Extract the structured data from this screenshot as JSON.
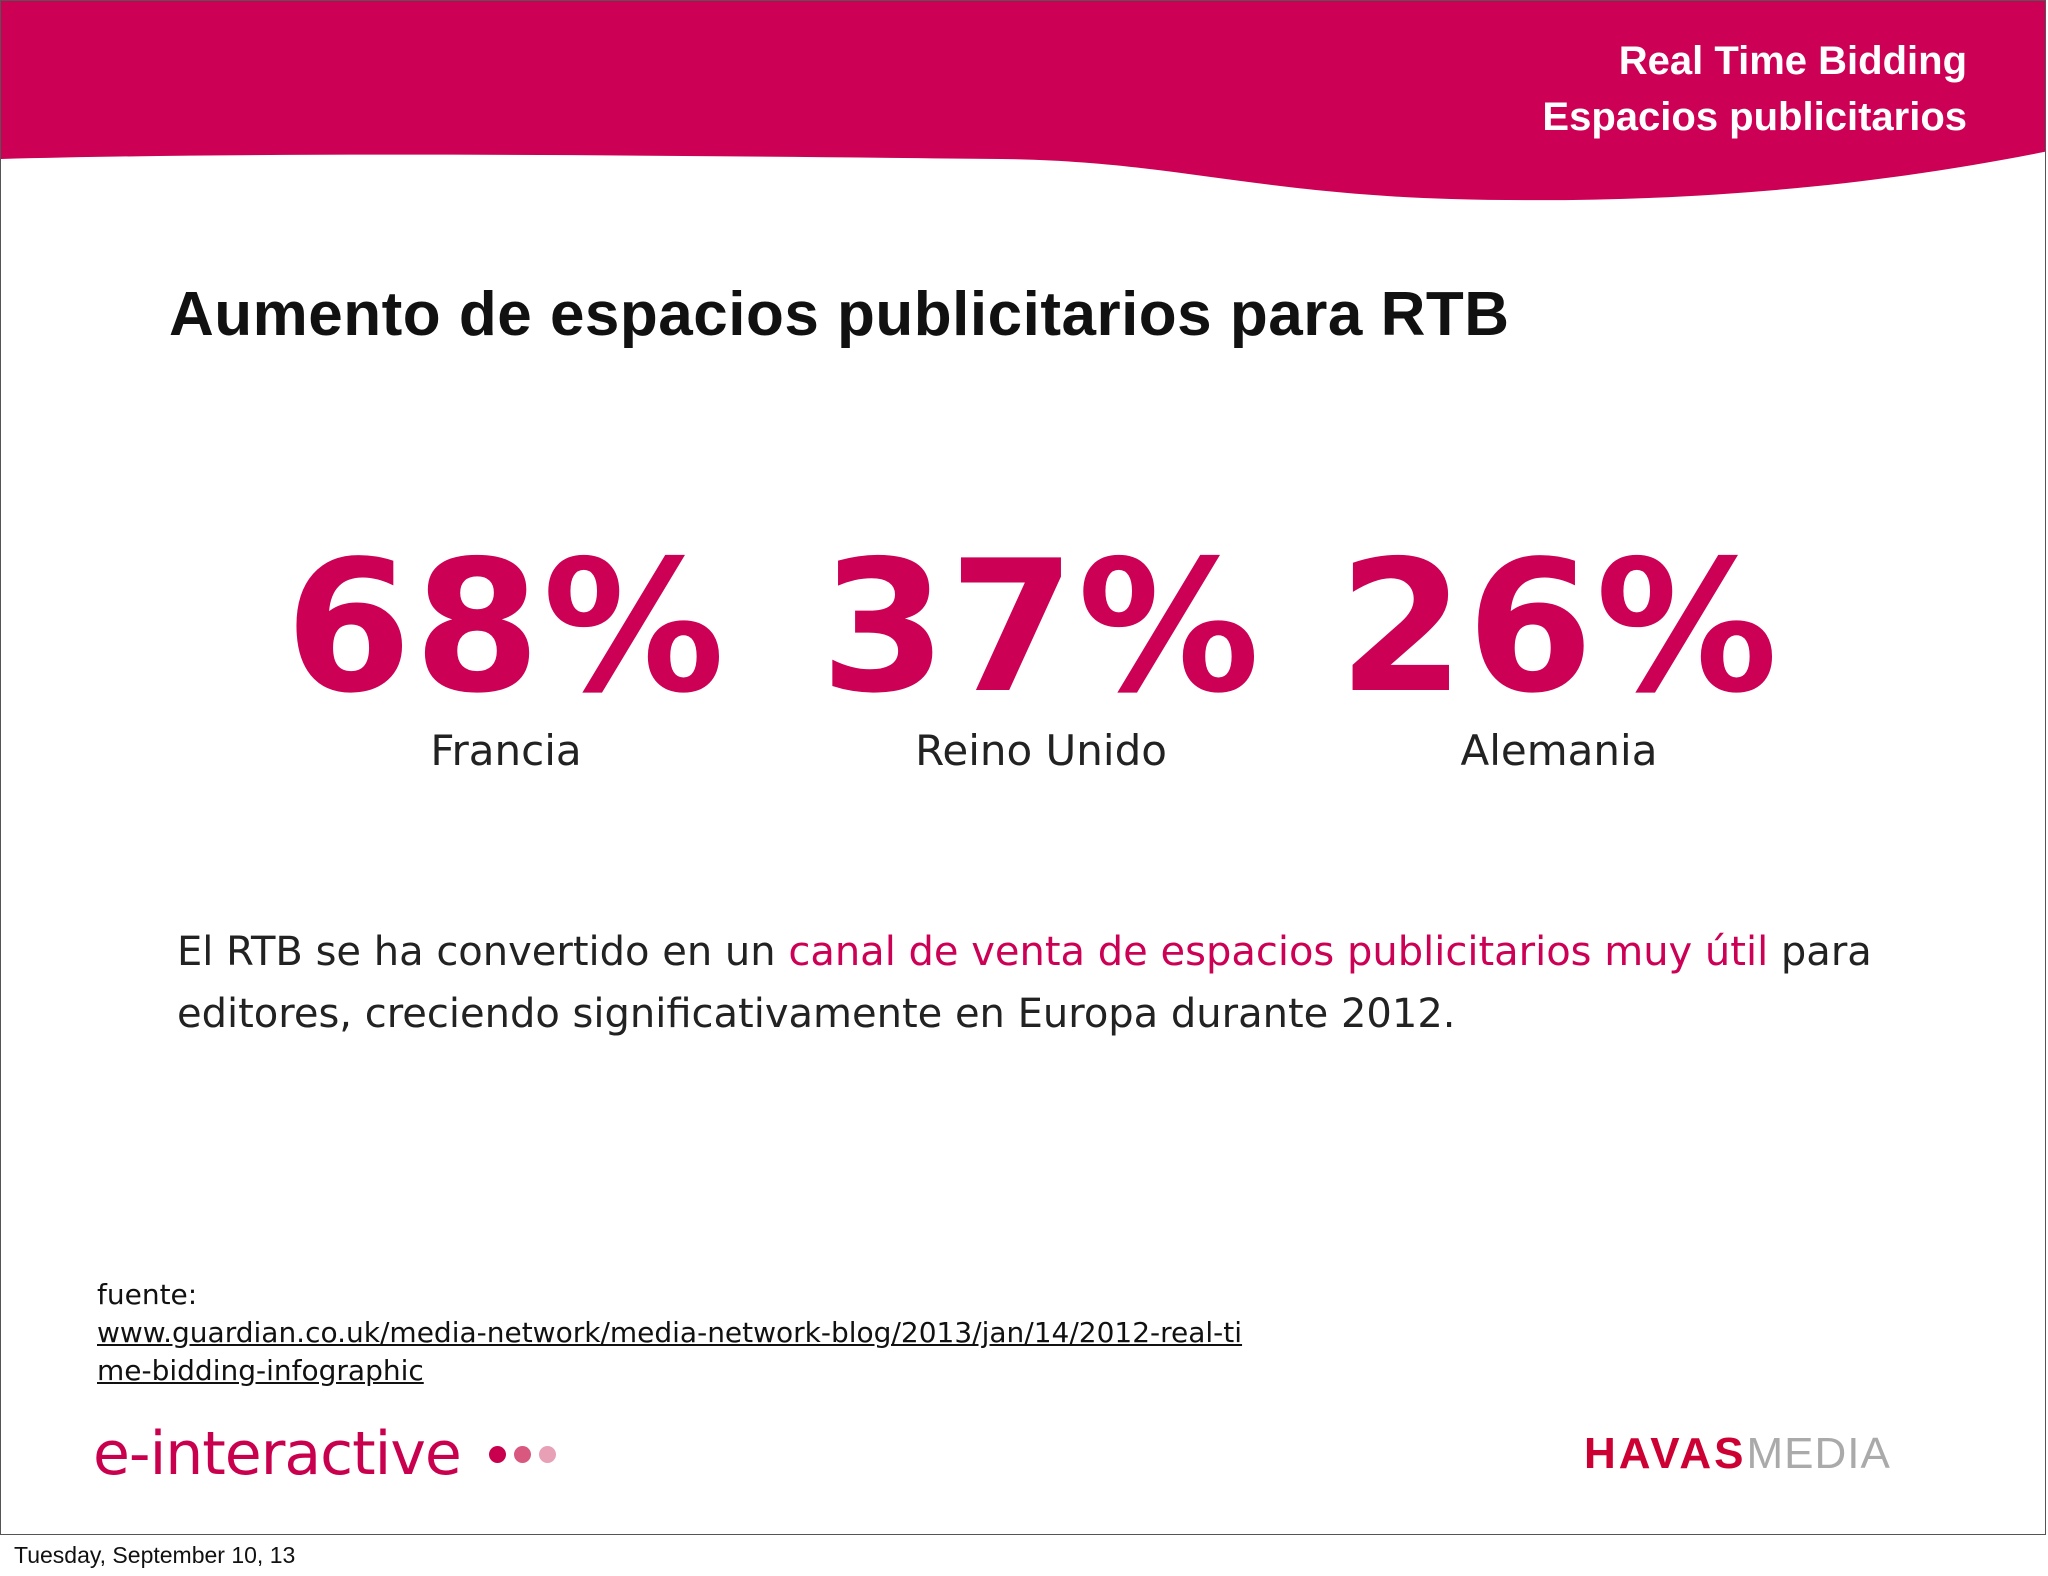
{
  "header": {
    "title": "Real Time Bidding",
    "subtitle": "Espacios publicitarios",
    "color": "#cc0055"
  },
  "main_title": "Aumento de espacios publicitarios para RTB",
  "stats": [
    {
      "value": "68%",
      "label": "Francia"
    },
    {
      "value": "37%",
      "label": "Reino Unido"
    },
    {
      "value": "26%",
      "label": "Alemania"
    }
  ],
  "body": {
    "before": "El RTB se ha convertido en un ",
    "highlight": "canal de venta de espacios publicitarios muy útil",
    "after": " para editores, creciendo significativamente en Europa durante 2012."
  },
  "source": {
    "label": "fuente:",
    "link_text": "www.guardian.co.uk/media-network/media-network-blog/2013/jan/14/2012-real-time-bidding-infographic"
  },
  "logos": {
    "einteractive_text": "e-interactive",
    "einteractive_dot_colors": [
      "#c8004e",
      "#d9587f",
      "#e8a0b6"
    ],
    "havas_bold": "HAVAS",
    "havas_light": "MEDIA"
  },
  "footer_date": "Tuesday, September 10, 13",
  "colors": {
    "accent": "#cc0055",
    "text": "#222222"
  }
}
